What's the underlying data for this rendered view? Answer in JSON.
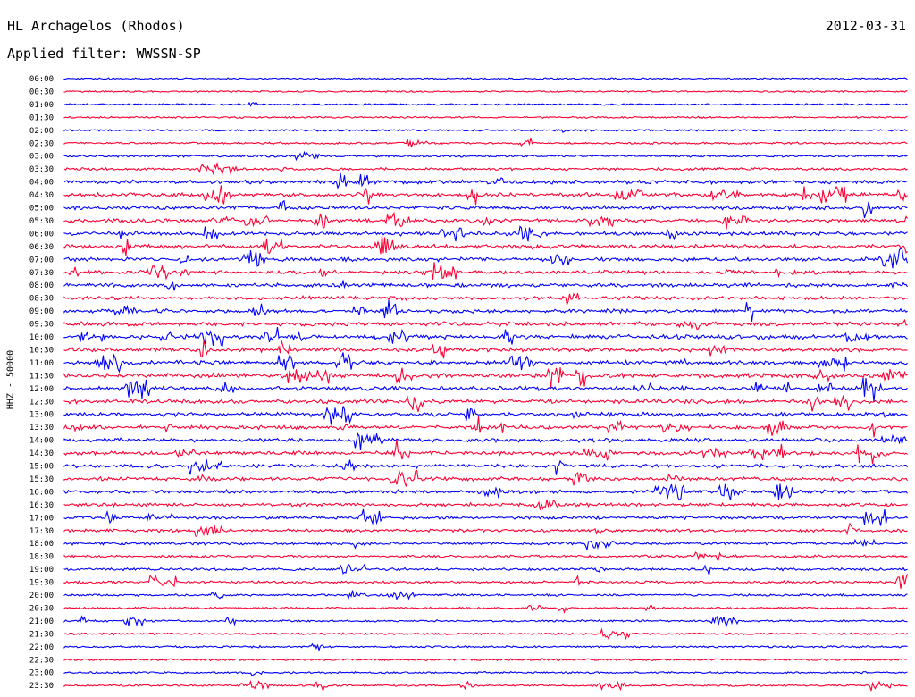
{
  "header": {
    "station": "HL Archagelos (Rhodos)",
    "date": "2012-03-31",
    "filter": "Applied filter: WWSSN-SP"
  },
  "chart_data": {
    "type": "helicorder",
    "ylabel": "HHZ - 50000",
    "trace_colors": [
      "#0000ff",
      "#ff0033"
    ],
    "rows": [
      {
        "time": "00:00",
        "activity": 0.12
      },
      {
        "time": "00:30",
        "activity": 0.12
      },
      {
        "time": "01:00",
        "activity": 0.15
      },
      {
        "time": "01:30",
        "activity": 0.18
      },
      {
        "time": "02:00",
        "activity": 0.2
      },
      {
        "time": "02:30",
        "activity": 0.25
      },
      {
        "time": "03:00",
        "activity": 0.3
      },
      {
        "time": "03:30",
        "activity": 0.4
      },
      {
        "time": "04:00",
        "activity": 0.75
      },
      {
        "time": "04:30",
        "activity": 0.8
      },
      {
        "time": "05:00",
        "activity": 0.7
      },
      {
        "time": "05:30",
        "activity": 0.7
      },
      {
        "time": "06:00",
        "activity": 0.75
      },
      {
        "time": "06:30",
        "activity": 0.8
      },
      {
        "time": "07:00",
        "activity": 0.75
      },
      {
        "time": "07:30",
        "activity": 0.75
      },
      {
        "time": "08:00",
        "activity": 0.75
      },
      {
        "time": "08:30",
        "activity": 0.75
      },
      {
        "time": "09:00",
        "activity": 0.7
      },
      {
        "time": "09:30",
        "activity": 0.85
      },
      {
        "time": "10:00",
        "activity": 0.85
      },
      {
        "time": "10:30",
        "activity": 0.8
      },
      {
        "time": "11:00",
        "activity": 0.8
      },
      {
        "time": "11:30",
        "activity": 0.85
      },
      {
        "time": "12:00",
        "activity": 0.85
      },
      {
        "time": "12:30",
        "activity": 0.85
      },
      {
        "time": "13:00",
        "activity": 0.8
      },
      {
        "time": "13:30",
        "activity": 0.75
      },
      {
        "time": "14:00",
        "activity": 0.75
      },
      {
        "time": "14:30",
        "activity": 0.75
      },
      {
        "time": "15:00",
        "activity": 0.75
      },
      {
        "time": "15:30",
        "activity": 0.7
      },
      {
        "time": "16:00",
        "activity": 0.7
      },
      {
        "time": "16:30",
        "activity": 0.6
      },
      {
        "time": "17:00",
        "activity": 0.55
      },
      {
        "time": "17:30",
        "activity": 0.5
      },
      {
        "time": "18:00",
        "activity": 0.45
      },
      {
        "time": "18:30",
        "activity": 0.4
      },
      {
        "time": "19:00",
        "activity": 0.45
      },
      {
        "time": "19:30",
        "activity": 0.4
      },
      {
        "time": "20:00",
        "activity": 0.3
      },
      {
        "time": "20:30",
        "activity": 0.2
      },
      {
        "time": "21:00",
        "activity": 0.25
      },
      {
        "time": "21:30",
        "activity": 0.2
      },
      {
        "time": "22:00",
        "activity": 0.25
      },
      {
        "time": "22:30",
        "activity": 0.25
      },
      {
        "time": "23:00",
        "activity": 0.2
      },
      {
        "time": "23:30",
        "activity": 0.2
      }
    ]
  }
}
